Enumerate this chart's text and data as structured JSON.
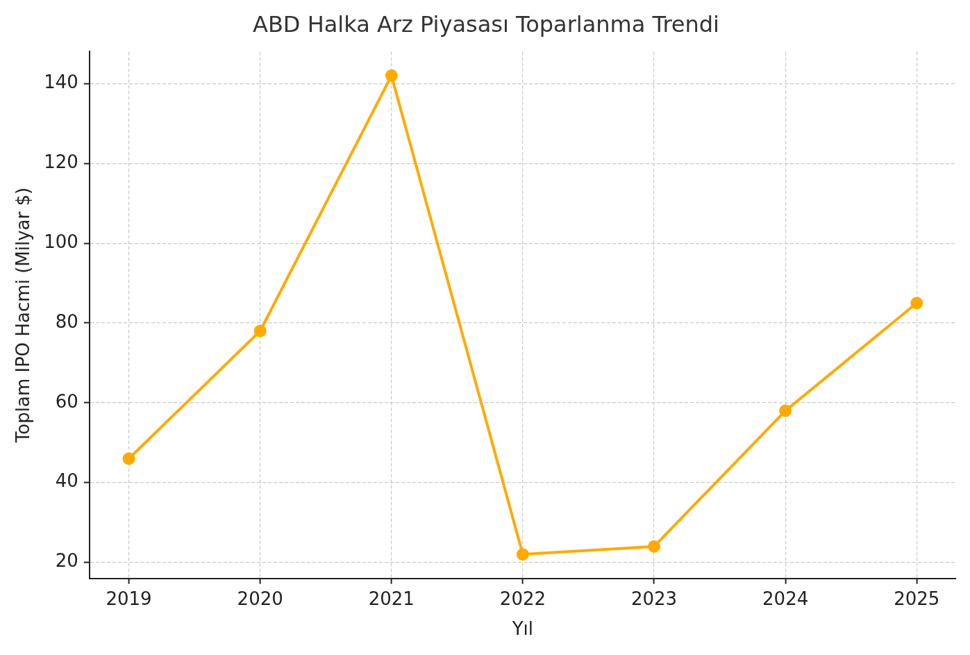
{
  "chart_data": {
    "type": "line",
    "title": "ABD Halka Arz Piyasası Toparlanma Trendi",
    "xlabel": "Yıl",
    "ylabel": "Toplam IPO Hacmi (Milyar $)",
    "x": [
      2019,
      2020,
      2021,
      2022,
      2023,
      2024,
      2025
    ],
    "series": [
      {
        "color": "#ffaa00",
        "values": [
          46,
          78,
          142,
          22,
          24,
          58,
          85
        ]
      }
    ],
    "xlim": [
      2018.7,
      2025.3
    ],
    "xticks": [
      2019,
      2020,
      2021,
      2022,
      2023,
      2024,
      2025
    ],
    "ylim": [
      16,
      148
    ],
    "yticks": [
      20,
      40,
      60,
      80,
      100,
      120,
      140
    ],
    "grid": true,
    "legend": false,
    "marker": "circle",
    "line_style": "solid"
  }
}
